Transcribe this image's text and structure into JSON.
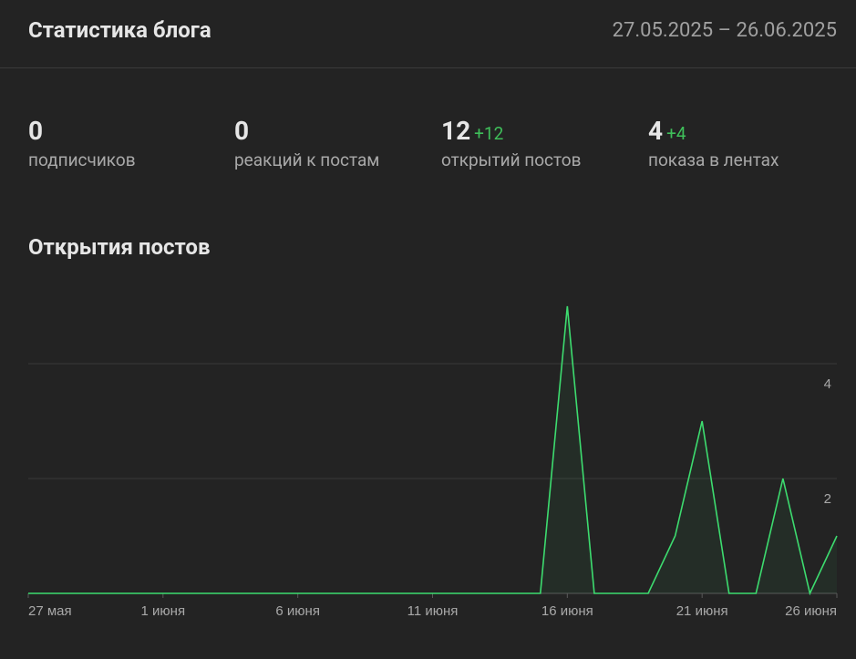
{
  "header": {
    "title": "Статистика блога",
    "date_range": "27.05.2025 – 26.06.2025"
  },
  "stats": [
    {
      "value": 0,
      "label": "подписчиков"
    },
    {
      "value": 0,
      "label": "реакций к постам"
    },
    {
      "value": 12,
      "delta": "+12",
      "label": "открытий постов"
    },
    {
      "value": 4,
      "delta": "+4",
      "label": "показа в лентах"
    }
  ],
  "chart_data": {
    "type": "line",
    "title": "Открытия постов",
    "categories": [
      "27 мая",
      null,
      null,
      null,
      null,
      "1 июня",
      null,
      null,
      null,
      null,
      "6 июня",
      null,
      null,
      null,
      null,
      "11 июня",
      null,
      null,
      null,
      null,
      "16 июня",
      null,
      null,
      null,
      null,
      "21 июня",
      null,
      null,
      null,
      null,
      "26 июня"
    ],
    "values": [
      0,
      0,
      0,
      0,
      0,
      0,
      0,
      0,
      0,
      0,
      0,
      0,
      0,
      0,
      0,
      0,
      0,
      0,
      0,
      0,
      5,
      0,
      0,
      0,
      1,
      3,
      0,
      0,
      2,
      0,
      1
    ],
    "color": "#3ddc6f",
    "ylim": [
      0,
      5
    ],
    "yticks": [
      2,
      4
    ],
    "grid": true
  }
}
